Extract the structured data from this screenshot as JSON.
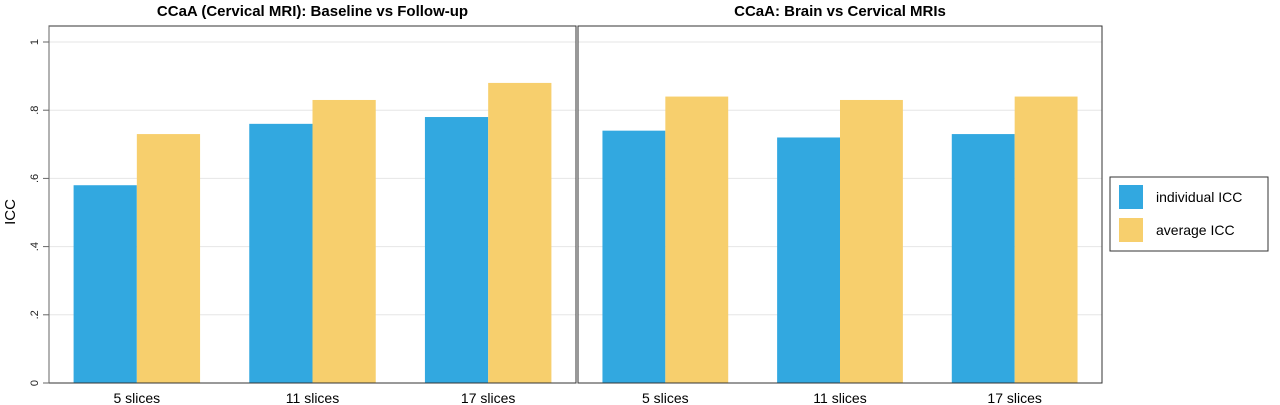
{
  "chart_data": {
    "type": "bar",
    "ylabel": "ICC",
    "ylim": [
      0,
      1
    ],
    "yticks": [
      0,
      0.2,
      0.4,
      0.6,
      0.8,
      1
    ],
    "ytick_labels": [
      "0",
      ".2",
      ".4",
      ".6",
      ".8",
      "1"
    ],
    "grid": true,
    "legend_position": "right",
    "legend": [
      {
        "label": "individual ICC",
        "color": "#32a8e0"
      },
      {
        "label": "average ICC",
        "color": "#f7cf6d"
      }
    ],
    "panels": [
      {
        "title": "CCaA (Cervical MRI): Baseline vs Follow-up",
        "categories": [
          "5 slices",
          "11 slices",
          "17 slices"
        ],
        "series": [
          {
            "name": "individual ICC",
            "values": [
              0.58,
              0.76,
              0.78
            ]
          },
          {
            "name": "average ICC",
            "values": [
              0.73,
              0.83,
              0.88
            ]
          }
        ]
      },
      {
        "title": "CCaA: Brain vs Cervical MRIs",
        "categories": [
          "5 slices",
          "11 slices",
          "17 slices"
        ],
        "series": [
          {
            "name": "individual ICC",
            "values": [
              0.74,
              0.72,
              0.73
            ]
          },
          {
            "name": "average ICC",
            "values": [
              0.84,
              0.83,
              0.84
            ]
          }
        ]
      }
    ]
  }
}
